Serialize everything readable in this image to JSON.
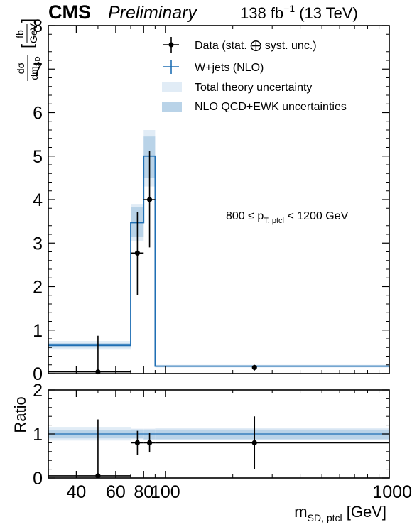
{
  "header": {
    "experiment": "CMS",
    "status": "Preliminary",
    "lumi": "138 fb",
    "lumi_exp": "−1",
    "energy": "(13 TeV)"
  },
  "legend": {
    "data": "Data (stat. ⨁ syst. unc.)",
    "mc": "W+jets (NLO)",
    "total_unc": "Total theory uncertainty",
    "qcd_ewk_unc": "NLO QCD+EWK uncertainties"
  },
  "annotation": {
    "pt_prefix": "800 ≤ p",
    "pt_sub": "T, ptcl",
    "pt_suffix": " < 1200 GeV"
  },
  "axes": {
    "ylabel_num": "dσ",
    "ylabel_den": "dm",
    "ylabel_den_sub": "SD",
    "ylabel_unit_num": "fb",
    "ylabel_unit_den": "GeV",
    "ratio_label": "Ratio",
    "xlabel_main": "m",
    "xlabel_sub": "SD, ptcl",
    "xlabel_unit": " [GeV]"
  },
  "colors": {
    "mc_line": "#1f6fb4",
    "total_band": "#e1ecf6",
    "qcd_band": "#b9d3e8",
    "data": "#000000"
  },
  "chart_data": [
    {
      "type": "histogram",
      "panel": "main",
      "xscale": "log",
      "xlim": [
        30,
        1000
      ],
      "ylim": [
        0,
        8
      ],
      "yticks": [
        0,
        1,
        2,
        3,
        4,
        5,
        6,
        7,
        8
      ],
      "bins": [
        [
          30,
          70
        ],
        [
          70,
          80
        ],
        [
          80,
          90
        ],
        [
          90,
          1000
        ]
      ],
      "series": [
        {
          "name": "W+jets (NLO)",
          "values": [
            0.65,
            3.47,
            5.0,
            0.17
          ],
          "total_unc_lo": [
            0.55,
            3.05,
            4.3,
            0.14
          ],
          "total_unc_hi": [
            0.75,
            3.9,
            5.6,
            0.2
          ],
          "qcd_ewk_lo": [
            0.6,
            3.15,
            4.5,
            0.15
          ],
          "qcd_ewk_hi": [
            0.7,
            3.82,
            5.45,
            0.19
          ]
        },
        {
          "name": "Data (stat. ⨁ syst. unc.)",
          "points": [
            {
              "x": 50,
              "y": 0.04,
              "lo": 0.0,
              "hi": 0.87,
              "xlo": 30,
              "xhi": 70
            },
            {
              "x": 75,
              "y": 2.77,
              "lo": 1.8,
              "hi": 3.72,
              "xlo": 70,
              "xhi": 80
            },
            {
              "x": 85,
              "y": 4.0,
              "lo": 2.9,
              "hi": 5.12,
              "xlo": 80,
              "xhi": 90
            },
            {
              "x": 250,
              "y": 0.14,
              "lo": 0.07,
              "hi": 0.2
            }
          ]
        }
      ]
    },
    {
      "type": "ratio",
      "panel": "ratio",
      "xscale": "log",
      "xlim": [
        30,
        1000
      ],
      "ylim": [
        0,
        2
      ],
      "yticks": [
        0,
        1,
        2
      ],
      "xticks": [
        40,
        60,
        80,
        100,
        1000
      ],
      "bins": [
        [
          30,
          70
        ],
        [
          70,
          80
        ],
        [
          80,
          90
        ],
        [
          90,
          1000
        ]
      ],
      "total_unc_lo": [
        0.85,
        0.88,
        0.86,
        0.86
      ],
      "total_unc_hi": [
        1.16,
        1.12,
        1.12,
        1.14
      ],
      "qcd_ewk_lo": [
        0.9,
        0.9,
        0.88,
        0.88
      ],
      "qcd_ewk_hi": [
        1.08,
        1.1,
        1.1,
        1.1
      ],
      "points": [
        {
          "x": 50,
          "y": 0.05,
          "lo": 0.0,
          "hi": 1.33,
          "xlo": 30,
          "xhi": 70
        },
        {
          "x": 75,
          "y": 0.8,
          "lo": 0.53,
          "hi": 1.07,
          "xlo": 70,
          "xhi": 80
        },
        {
          "x": 85,
          "y": 0.8,
          "lo": 0.58,
          "hi": 1.03,
          "xlo": 80,
          "xhi": 90
        },
        {
          "x": 250,
          "y": 0.8,
          "lo": 0.2,
          "hi": 1.4,
          "xlo": 90,
          "xhi": 1000
        }
      ]
    }
  ]
}
